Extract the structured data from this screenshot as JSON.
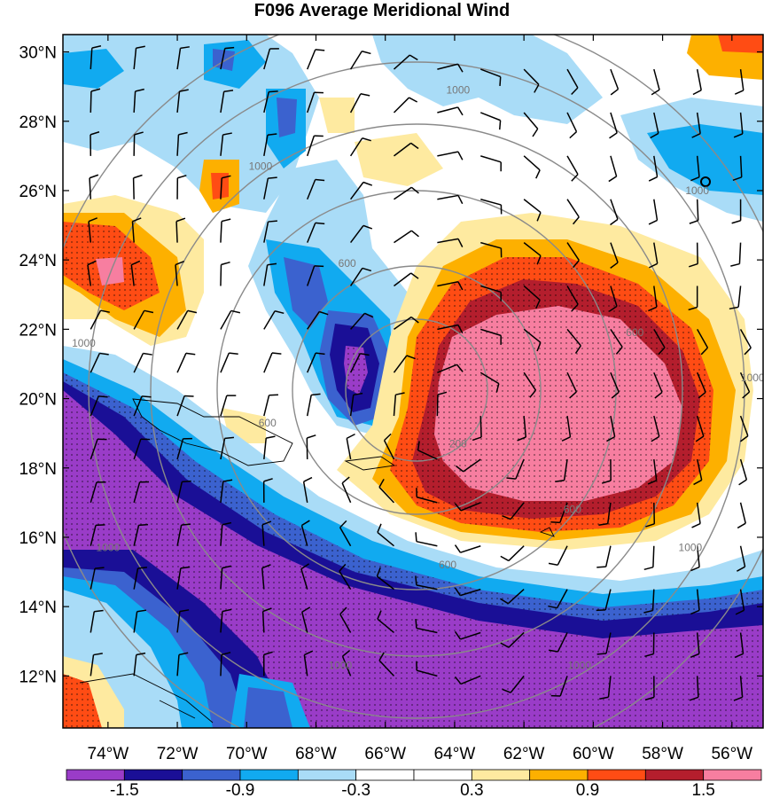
{
  "title": "F096 Average Meridional Wind",
  "map": {
    "lat_labels": [
      "30°N",
      "28°N",
      "26°N",
      "24°N",
      "22°N",
      "20°N",
      "18°N",
      "16°N",
      "14°N",
      "12°N"
    ],
    "lon_labels": [
      "74°W",
      "72°W",
      "70°W",
      "68°W",
      "66°W",
      "64°W",
      "62°W",
      "60°W",
      "58°W",
      "56°W"
    ],
    "contour_labels": [
      {
        "text": "1000",
        "lat": 28.8,
        "lon": -63.9
      },
      {
        "text": "1000",
        "lat": 26.6,
        "lon": -69.6
      },
      {
        "text": "1000",
        "lat": 25.9,
        "lon": -57.0
      },
      {
        "text": "1000",
        "lat": 21.5,
        "lon": -74.7
      },
      {
        "text": "1000",
        "lat": 20.5,
        "lon": -55.4
      },
      {
        "text": "1000",
        "lat": 15.6,
        "lon": -57.2
      },
      {
        "text": "1000",
        "lat": 15.6,
        "lon": -74.0
      },
      {
        "text": "1000",
        "lat": 12.2,
        "lon": -60.4
      },
      {
        "text": "1000",
        "lat": 12.2,
        "lon": -67.3
      },
      {
        "text": "600",
        "lat": 23.8,
        "lon": -67.1
      },
      {
        "text": "600",
        "lat": 21.8,
        "lon": -58.8
      },
      {
        "text": "600",
        "lat": 19.2,
        "lon": -69.4
      },
      {
        "text": "600",
        "lat": 16.7,
        "lon": -60.6
      },
      {
        "text": "600",
        "lat": 15.1,
        "lon": -64.2
      },
      {
        "text": "200",
        "lat": 18.6,
        "lon": -63.9
      }
    ]
  },
  "colorbar": {
    "labels": [
      "-1.5",
      "-0.9",
      "-0.3",
      "0.3",
      "0.9",
      "1.5"
    ],
    "colors": [
      "#9a3cc8",
      "#1a0f96",
      "#3b62cf",
      "#11aaf0",
      "#a9dcf7",
      "#ffffff",
      "#ffffff",
      "#feeaa0",
      "#fdb000",
      "#ff4c14",
      "#b41e2d",
      "#f77ea0"
    ]
  }
}
